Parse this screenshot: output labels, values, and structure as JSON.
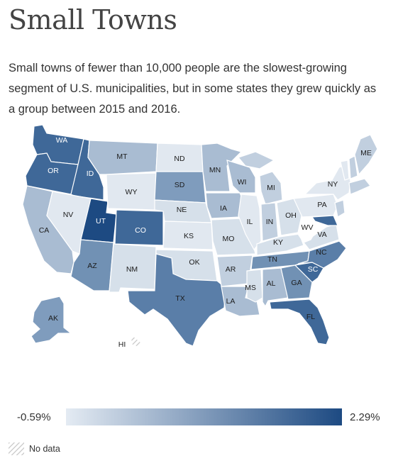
{
  "title": "Small Towns",
  "subtitle": "Small towns of fewer than 10,000 people are the slowest-growing segment of U.S. municipalities, but in some states they grew quickly as a group between 2015 and 2016.",
  "legend": {
    "min_label": "-0.59%",
    "max_label": "2.29%",
    "min_value": -0.59,
    "max_value": 2.29,
    "color_low": "#e4ebf3",
    "color_high": "#1d4a82",
    "no_data_label": "No data",
    "no_data_color": "#c6c6c6"
  },
  "colors": {
    "background": "#ffffff",
    "state_border": "#ffffff",
    "label_text": "#1c1c1c"
  },
  "states": [
    {
      "abbr": "WA",
      "label": "WA"
    },
    {
      "abbr": "OR",
      "label": "OR"
    },
    {
      "abbr": "CA",
      "label": "CA"
    },
    {
      "abbr": "ID",
      "label": "ID"
    },
    {
      "abbr": "NV",
      "label": "NV"
    },
    {
      "abbr": "UT",
      "label": "UT"
    },
    {
      "abbr": "AZ",
      "label": "AZ"
    },
    {
      "abbr": "MT",
      "label": "MT"
    },
    {
      "abbr": "WY",
      "label": "WY"
    },
    {
      "abbr": "CO",
      "label": "CO"
    },
    {
      "abbr": "NM",
      "label": "NM"
    },
    {
      "abbr": "ND",
      "label": "ND"
    },
    {
      "abbr": "SD",
      "label": "SD"
    },
    {
      "abbr": "NE",
      "label": "NE"
    },
    {
      "abbr": "KS",
      "label": "KS"
    },
    {
      "abbr": "OK",
      "label": "OK"
    },
    {
      "abbr": "TX",
      "label": "TX"
    },
    {
      "abbr": "MN",
      "label": "MN"
    },
    {
      "abbr": "IA",
      "label": "IA"
    },
    {
      "abbr": "MO",
      "label": "MO"
    },
    {
      "abbr": "AR",
      "label": "AR"
    },
    {
      "abbr": "LA",
      "label": "LA"
    },
    {
      "abbr": "WI",
      "label": "WI"
    },
    {
      "abbr": "IL",
      "label": "IL"
    },
    {
      "abbr": "MI",
      "label": "MI"
    },
    {
      "abbr": "IN",
      "label": "IN"
    },
    {
      "abbr": "OH",
      "label": "OH"
    },
    {
      "abbr": "KY",
      "label": "KY"
    },
    {
      "abbr": "TN",
      "label": "TN"
    },
    {
      "abbr": "MS",
      "label": "MS"
    },
    {
      "abbr": "AL",
      "label": "AL"
    },
    {
      "abbr": "GA",
      "label": "GA"
    },
    {
      "abbr": "FL",
      "label": "FL"
    },
    {
      "abbr": "SC",
      "label": "SC"
    },
    {
      "abbr": "NC",
      "label": "NC"
    },
    {
      "abbr": "VA",
      "label": "VA"
    },
    {
      "abbr": "WV",
      "label": "WV"
    },
    {
      "abbr": "PA",
      "label": "PA"
    },
    {
      "abbr": "NY",
      "label": "NY"
    },
    {
      "abbr": "ME",
      "label": "ME"
    },
    {
      "abbr": "AK",
      "label": "AK"
    },
    {
      "abbr": "HI",
      "label": "HI",
      "no_data": true
    }
  ]
}
